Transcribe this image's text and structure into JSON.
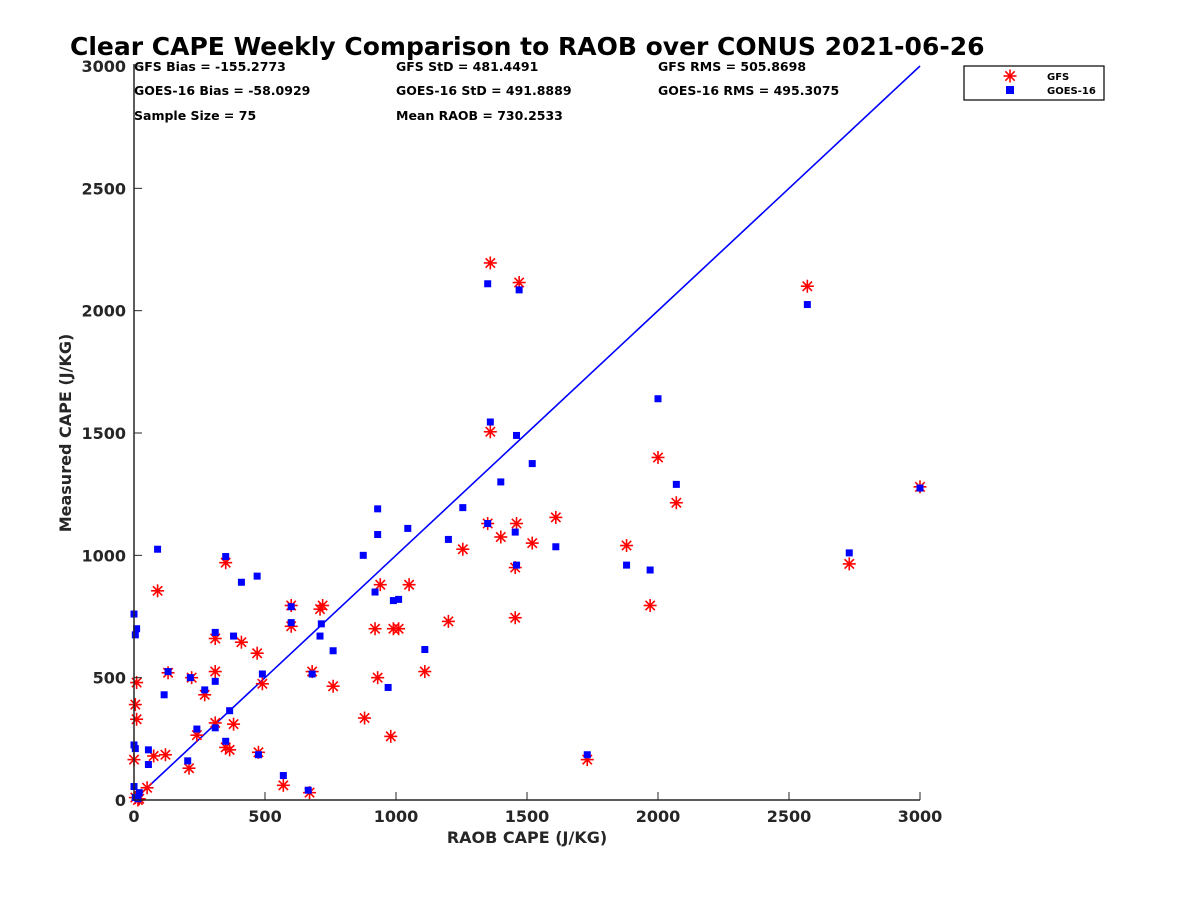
{
  "chart_data": {
    "type": "scatter",
    "title": "Clear CAPE Weekly Comparison to RAOB over CONUS 2021-06-26",
    "xlabel": "RAOB CAPE (J/KG)",
    "ylabel": "Measured CAPE (J/KG)",
    "xlim": [
      0,
      3000
    ],
    "ylim": [
      0,
      3000
    ],
    "xticks": [
      0,
      500,
      1000,
      1500,
      2000,
      2500,
      3000
    ],
    "yticks": [
      0,
      500,
      1000,
      1500,
      2000,
      2500,
      3000
    ],
    "legend_position": "top-right",
    "reference_line": {
      "name": "1:1 line",
      "x": [
        0,
        3000
      ],
      "y": [
        0,
        3000
      ],
      "color": "#0000ff"
    },
    "stats": [
      {
        "label": "GFS Bias = -155.2773",
        "row": 0,
        "col": 0
      },
      {
        "label": "GFS StD = 481.4491",
        "row": 0,
        "col": 1
      },
      {
        "label": "GFS RMS = 505.8698",
        "row": 0,
        "col": 2
      },
      {
        "label": "GOES-16 Bias = -58.0929",
        "row": 1,
        "col": 0
      },
      {
        "label": "GOES-16 StD = 491.8889",
        "row": 1,
        "col": 1
      },
      {
        "label": "GOES-16 RMS = 495.3075",
        "row": 1,
        "col": 2
      },
      {
        "label": "Sample Size = 75",
        "row": 2,
        "col": 0
      },
      {
        "label": "Mean RAOB = 730.2533",
        "row": 2,
        "col": 1
      }
    ],
    "series": [
      {
        "name": "GFS",
        "marker": "asterisk",
        "color": "#ff0000",
        "points": [
          [
            1360,
            2195
          ],
          [
            1470,
            2115
          ],
          [
            2570,
            2100
          ],
          [
            1360,
            1505
          ],
          [
            2000,
            1400
          ],
          [
            3000,
            1280
          ],
          [
            2070,
            1215
          ],
          [
            1610,
            1155
          ],
          [
            1520,
            1050
          ],
          [
            1880,
            1040
          ],
          [
            1350,
            1130
          ],
          [
            1460,
            1130
          ],
          [
            1400,
            1075
          ],
          [
            1255,
            1025
          ],
          [
            1455,
            950
          ],
          [
            2730,
            965
          ],
          [
            350,
            970
          ],
          [
            90,
            855
          ],
          [
            940,
            880
          ],
          [
            1050,
            880
          ],
          [
            1970,
            795
          ],
          [
            600,
            795
          ],
          [
            720,
            795
          ],
          [
            710,
            780
          ],
          [
            1455,
            745
          ],
          [
            1200,
            730
          ],
          [
            600,
            710
          ],
          [
            920,
            700
          ],
          [
            990,
            700
          ],
          [
            1010,
            700
          ],
          [
            410,
            645
          ],
          [
            310,
            660
          ],
          [
            470,
            600
          ],
          [
            1110,
            525
          ],
          [
            680,
            525
          ],
          [
            130,
            520
          ],
          [
            310,
            525
          ],
          [
            220,
            500
          ],
          [
            930,
            500
          ],
          [
            490,
            475
          ],
          [
            760,
            465
          ],
          [
            10,
            480
          ],
          [
            270,
            430
          ],
          [
            5,
            390
          ],
          [
            10,
            330
          ],
          [
            880,
            335
          ],
          [
            310,
            315
          ],
          [
            380,
            310
          ],
          [
            240,
            265
          ],
          [
            980,
            260
          ],
          [
            350,
            215
          ],
          [
            365,
            205
          ],
          [
            475,
            195
          ],
          [
            120,
            185
          ],
          [
            75,
            180
          ],
          [
            0,
            165
          ],
          [
            1730,
            165
          ],
          [
            210,
            130
          ],
          [
            570,
            60
          ],
          [
            50,
            50
          ],
          [
            670,
            30
          ],
          [
            5,
            10
          ],
          [
            20,
            5
          ],
          [
            15,
            0
          ]
        ]
      },
      {
        "name": "GOES-16",
        "marker": "square",
        "color": "#0000ff",
        "points": [
          [
            1350,
            2110
          ],
          [
            1470,
            2085
          ],
          [
            2570,
            2025
          ],
          [
            2000,
            1640
          ],
          [
            1360,
            1545
          ],
          [
            1460,
            1490
          ],
          [
            1520,
            1375
          ],
          [
            1400,
            1300
          ],
          [
            2070,
            1290
          ],
          [
            3000,
            1275
          ],
          [
            930,
            1190
          ],
          [
            1255,
            1195
          ],
          [
            1350,
            1130
          ],
          [
            1045,
            1110
          ],
          [
            1455,
            1095
          ],
          [
            930,
            1085
          ],
          [
            1200,
            1065
          ],
          [
            1610,
            1035
          ],
          [
            90,
            1025
          ],
          [
            2730,
            1010
          ],
          [
            875,
            1000
          ],
          [
            350,
            995
          ],
          [
            1460,
            960
          ],
          [
            1880,
            960
          ],
          [
            1970,
            940
          ],
          [
            470,
            915
          ],
          [
            410,
            890
          ],
          [
            920,
            850
          ],
          [
            1010,
            820
          ],
          [
            990,
            815
          ],
          [
            600,
            790
          ],
          [
            0,
            760
          ],
          [
            10,
            700
          ],
          [
            600,
            725
          ],
          [
            715,
            720
          ],
          [
            310,
            685
          ],
          [
            5,
            675
          ],
          [
            380,
            670
          ],
          [
            710,
            670
          ],
          [
            1110,
            615
          ],
          [
            760,
            610
          ],
          [
            130,
            525
          ],
          [
            490,
            515
          ],
          [
            680,
            515
          ],
          [
            215,
            500
          ],
          [
            310,
            485
          ],
          [
            970,
            460
          ],
          [
            270,
            450
          ],
          [
            115,
            430
          ],
          [
            365,
            365
          ],
          [
            310,
            295
          ],
          [
            240,
            290
          ],
          [
            350,
            240
          ],
          [
            0,
            225
          ],
          [
            5,
            210
          ],
          [
            55,
            205
          ],
          [
            475,
            185
          ],
          [
            1730,
            185
          ],
          [
            205,
            160
          ],
          [
            55,
            145
          ],
          [
            570,
            100
          ],
          [
            0,
            55
          ],
          [
            665,
            40
          ],
          [
            20,
            30
          ],
          [
            5,
            10
          ],
          [
            15,
            5
          ]
        ]
      }
    ]
  }
}
